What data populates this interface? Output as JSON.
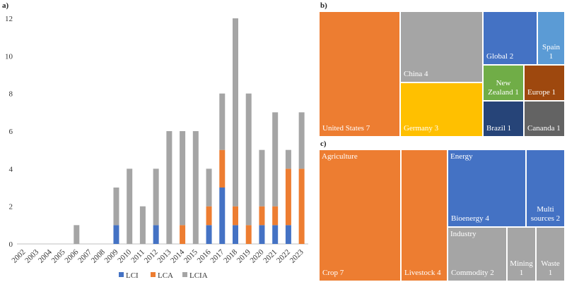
{
  "chart_data": [
    {
      "panel": "a)",
      "type": "bar",
      "stacked": true,
      "categories": [
        "2002",
        "2003",
        "2004",
        "2005",
        "2006",
        "2007",
        "2008",
        "2009",
        "2010",
        "2011",
        "2012",
        "2013",
        "2014",
        "2015",
        "2016",
        "2017",
        "2018",
        "2019",
        "2020",
        "2021",
        "2022",
        "2023"
      ],
      "series": [
        {
          "name": "LCI",
          "color": "#4472C4",
          "values": [
            0,
            0,
            0,
            0,
            0,
            0,
            0,
            1,
            0,
            0,
            1,
            0,
            0,
            0,
            1,
            3,
            1,
            0,
            1,
            1,
            1,
            0
          ]
        },
        {
          "name": "LCA",
          "color": "#ED7D31",
          "values": [
            0,
            0,
            0,
            0,
            0,
            0,
            0,
            0,
            0,
            0,
            0,
            0,
            1,
            0,
            1,
            2,
            1,
            1,
            1,
            1,
            3,
            4
          ]
        },
        {
          "name": "LCIA",
          "color": "#A5A5A5",
          "values": [
            0,
            0,
            0,
            0,
            1,
            0,
            0,
            2,
            4,
            2,
            3,
            6,
            5,
            6,
            2,
            3,
            10,
            7,
            3,
            5,
            1,
            3
          ]
        }
      ],
      "ylim": [
        0,
        12
      ],
      "yticks": [
        "0",
        "2",
        "4",
        "6",
        "8",
        "10",
        "12"
      ],
      "grid": false,
      "legend": "bottom"
    },
    {
      "panel": "b)",
      "type": "treemap",
      "items": [
        {
          "label": "United States 7",
          "value": 7,
          "color": "#ED7D31"
        },
        {
          "label": "China 4",
          "value": 4,
          "color": "#A5A5A5"
        },
        {
          "label": "Germany 3",
          "value": 3,
          "color": "#FFC000"
        },
        {
          "label": "Global 2",
          "value": 2,
          "color": "#4472C4"
        },
        {
          "label": "Spain\n1",
          "value": 1,
          "color": "#5B9BD5"
        },
        {
          "label": "New\nZealand 1",
          "value": 1,
          "color": "#70AD47"
        },
        {
          "label": "Europe 1",
          "value": 1,
          "color": "#9E480E"
        },
        {
          "label": "Brazil 1",
          "value": 1,
          "color": "#264478"
        },
        {
          "label": "Cananda 1",
          "value": 1,
          "color": "#636363"
        }
      ]
    },
    {
      "panel": "c)",
      "type": "treemap",
      "groups": [
        {
          "label": "Agriculture",
          "color": "#ED7D31"
        },
        {
          "label": "Energy",
          "color": "#4472C4"
        },
        {
          "label": "Industry",
          "color": "#A5A5A5"
        }
      ],
      "items": [
        {
          "label": "Crop 7",
          "value": 7,
          "color": "#ED7D31"
        },
        {
          "label": "Livestock 4",
          "value": 4,
          "color": "#ED7D31"
        },
        {
          "label": "Bioenergy 4",
          "value": 4,
          "color": "#4472C4"
        },
        {
          "label": "Multi\nsources 2",
          "value": 2,
          "color": "#4472C4"
        },
        {
          "label": "Commodity 2",
          "value": 2,
          "color": "#A5A5A5"
        },
        {
          "label": "Mining\n1",
          "value": 1,
          "color": "#A5A5A5"
        },
        {
          "label": "Waste\n1",
          "value": 1,
          "color": "#A5A5A5"
        }
      ]
    }
  ]
}
